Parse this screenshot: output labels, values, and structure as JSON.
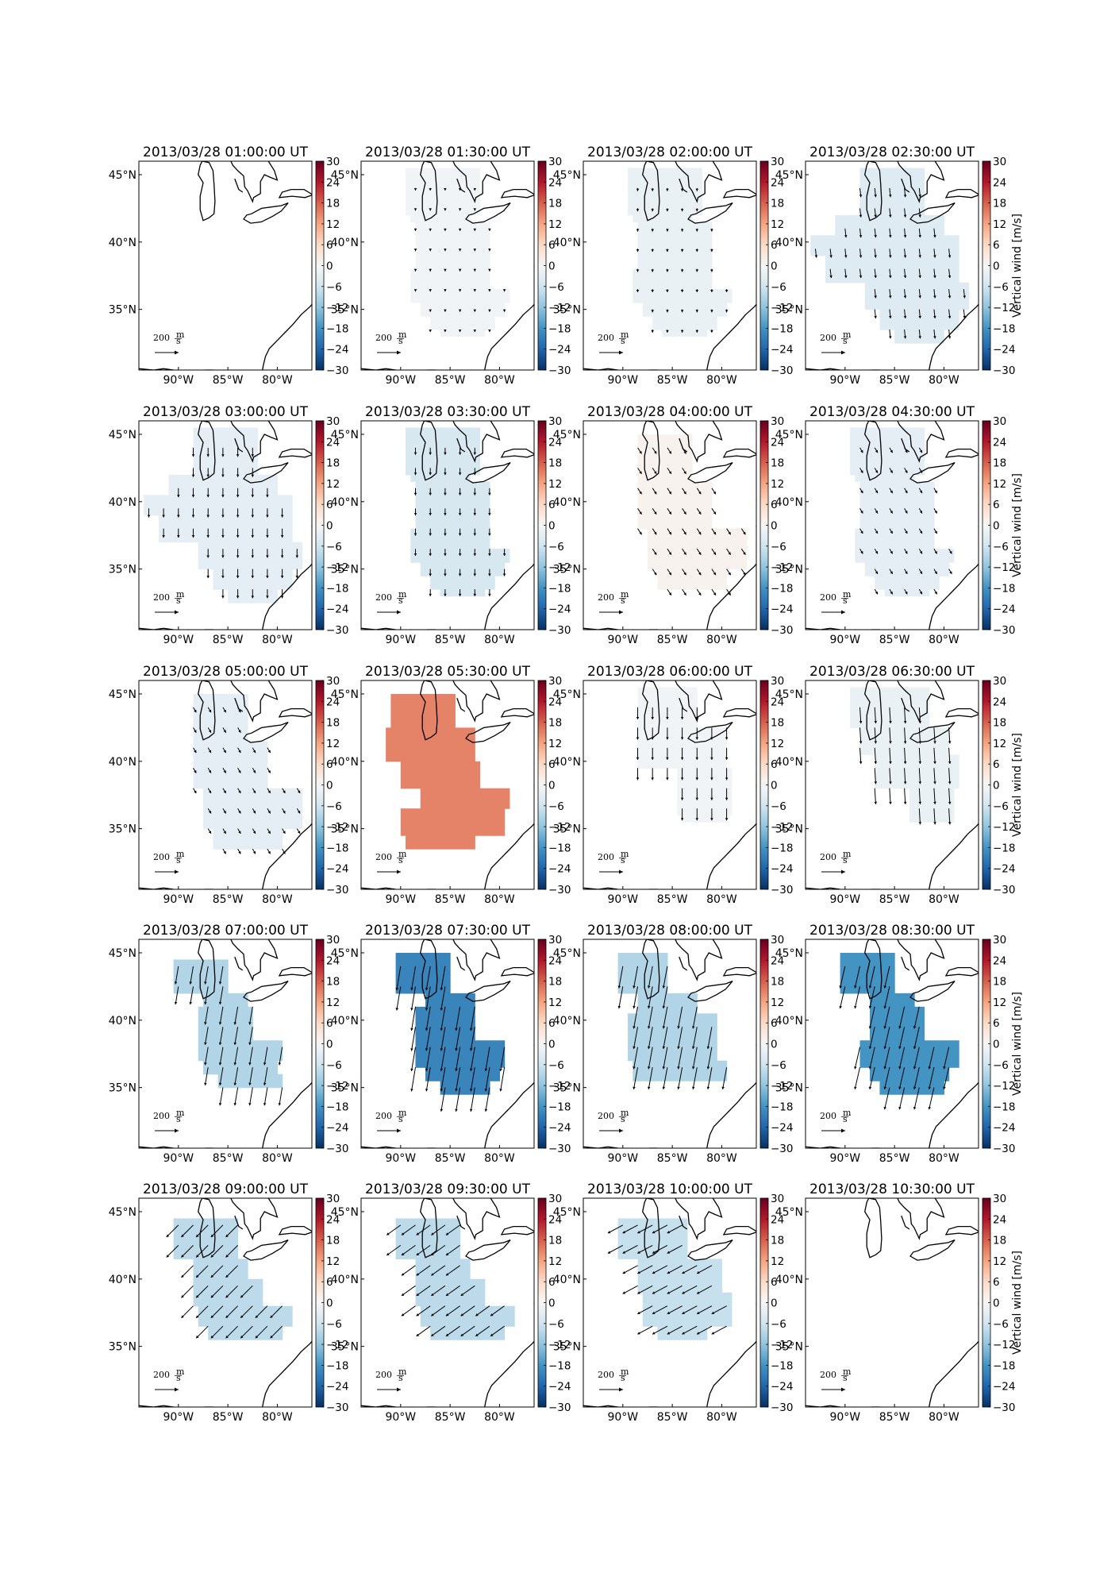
{
  "chart_data": {
    "type": "heatmap",
    "layout": {
      "rows": 5,
      "cols": 4
    },
    "map_extent": {
      "lon": [
        -94,
        -76.5
      ],
      "lat": [
        30.5,
        46
      ]
    },
    "lat_ticks": [
      {
        "value": 45,
        "label": "45°N"
      },
      {
        "value": 40,
        "label": "40°N"
      },
      {
        "value": 35,
        "label": "35°N"
      }
    ],
    "lon_ticks": [
      {
        "value": -90,
        "label": "90°W"
      },
      {
        "value": -85,
        "label": "85°W"
      },
      {
        "value": -80,
        "label": "80°W"
      }
    ],
    "colorbar": {
      "colormap": "RdBu_r",
      "range": [
        -30,
        30
      ],
      "ticks": [
        30,
        24,
        18,
        12,
        6,
        0,
        -6,
        -12,
        -18,
        -24,
        -30
      ],
      "tick_labels": [
        "30",
        "24",
        "18",
        "12",
        "6",
        "0",
        "−6",
        "−12",
        "−18",
        "−24",
        "−30"
      ],
      "label": "Vertical wind [m/s]"
    },
    "quiver_key": {
      "label": "200",
      "unit_numerator": "m",
      "unit_denominator": "s",
      "magnitude": 200
    },
    "panels": [
      {
        "title": "2013/03/28 01:00:00 UT",
        "value": null,
        "vector": null
      },
      {
        "title": "2013/03/28 01:30:00 UT",
        "value": -1,
        "vector": {
          "u": 0,
          "v": -12
        }
      },
      {
        "title": "2013/03/28 02:00:00 UT",
        "value": -2,
        "vector": {
          "u": 0,
          "v": -15
        }
      },
      {
        "title": "2013/03/28 02:30:00 UT",
        "value": -4,
        "vector": {
          "u": 5,
          "v": -45
        }
      },
      {
        "title": "2013/03/28 03:00:00 UT",
        "value": -3,
        "vector": {
          "u": 0,
          "v": -45
        }
      },
      {
        "title": "2013/03/28 03:30:00 UT",
        "value": -5,
        "vector": {
          "u": 0,
          "v": -35
        }
      },
      {
        "title": "2013/03/28 04:00:00 UT",
        "value": 1,
        "vector": {
          "u": 20,
          "v": -30
        }
      },
      {
        "title": "2013/03/28 04:30:00 UT",
        "value": -3,
        "vector": {
          "u": 15,
          "v": -25
        }
      },
      {
        "title": "2013/03/28 05:00:00 UT",
        "value": -3,
        "vector": {
          "u": 15,
          "v": -25
        }
      },
      {
        "title": "2013/03/28 05:30:00 UT",
        "value": 15,
        "vector": null
      },
      {
        "title": "2013/03/28 06:00:00 UT",
        "value": -1,
        "vector": {
          "u": 0,
          "v": -60
        }
      },
      {
        "title": "2013/03/28 06:30:00 UT",
        "value": -2,
        "vector": {
          "u": 5,
          "v": -80
        }
      },
      {
        "title": "2013/03/28 07:00:00 UT",
        "value": -9,
        "vector": {
          "u": -15,
          "v": -90
        }
      },
      {
        "title": "2013/03/28 07:30:00 UT",
        "value": -20,
        "vector": {
          "u": -20,
          "v": -120
        }
      },
      {
        "title": "2013/03/28 08:00:00 UT",
        "value": -9,
        "vector": {
          "u": -20,
          "v": -110
        }
      },
      {
        "title": "2013/03/28 08:30:00 UT",
        "value": -18,
        "vector": {
          "u": -25,
          "v": -110
        }
      },
      {
        "title": "2013/03/28 09:00:00 UT",
        "value": -8,
        "vector": {
          "u": -60,
          "v": -60
        }
      },
      {
        "title": "2013/03/28 09:30:00 UT",
        "value": -8,
        "vector": {
          "u": -70,
          "v": -50
        }
      },
      {
        "title": "2013/03/28 10:00:00 UT",
        "value": -7,
        "vector": {
          "u": -75,
          "v": -40
        }
      },
      {
        "title": "2013/03/28 10:30:00 UT",
        "value": null,
        "vector": null
      }
    ]
  }
}
